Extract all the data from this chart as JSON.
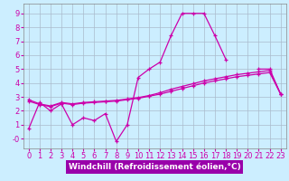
{
  "xlabel": "Windchill (Refroidissement éolien,°C)",
  "background_color": "#cceeff",
  "grid_color": "#aabbcc",
  "line_color": "#cc00aa",
  "x_ticks": [
    0,
    1,
    2,
    3,
    4,
    5,
    6,
    7,
    8,
    9,
    10,
    11,
    12,
    13,
    14,
    15,
    16,
    17,
    18,
    19,
    20,
    21,
    22,
    23
  ],
  "y_ticks": [
    0,
    1,
    2,
    3,
    4,
    5,
    6,
    7,
    8,
    9
  ],
  "y_tick_labels": [
    "-0",
    "1",
    "2",
    "3",
    "4",
    "5",
    "6",
    "7",
    "8",
    "9"
  ],
  "ylim": [
    -0.7,
    9.7
  ],
  "xlim": [
    -0.5,
    23.5
  ],
  "series1_x": [
    0,
    1,
    2,
    3,
    4,
    5,
    6,
    7,
    8,
    9,
    10,
    11,
    12,
    13,
    14,
    15,
    16,
    17,
    18
  ],
  "series1_y": [
    0.7,
    2.6,
    2.0,
    2.5,
    1.0,
    1.5,
    1.3,
    1.8,
    -0.2,
    1.0,
    4.4,
    5.0,
    5.5,
    7.4,
    9.0,
    9.0,
    9.0,
    7.4,
    5.7
  ],
  "series2_x": [
    21,
    22,
    23
  ],
  "series2_y": [
    5.0,
    5.0,
    3.2
  ],
  "series3_x": [
    0,
    1,
    2,
    3,
    4,
    5,
    6,
    7,
    8,
    9,
    10,
    11,
    12,
    13,
    14,
    15,
    16,
    17,
    18,
    19,
    20,
    21,
    22,
    23
  ],
  "series3_y": [
    2.7,
    2.45,
    2.3,
    2.55,
    2.45,
    2.55,
    2.6,
    2.65,
    2.7,
    2.8,
    2.9,
    3.05,
    3.2,
    3.4,
    3.6,
    3.8,
    4.0,
    4.15,
    4.3,
    4.45,
    4.55,
    4.65,
    4.75,
    3.2
  ],
  "series4_x": [
    0,
    1,
    2,
    3,
    4,
    5,
    6,
    7,
    8,
    9,
    10,
    11,
    12,
    13,
    14,
    15,
    16,
    17,
    18,
    19,
    20,
    21,
    22,
    23
  ],
  "series4_y": [
    2.8,
    2.5,
    2.35,
    2.6,
    2.5,
    2.6,
    2.65,
    2.7,
    2.75,
    2.85,
    2.95,
    3.1,
    3.3,
    3.55,
    3.75,
    3.95,
    4.15,
    4.3,
    4.45,
    4.6,
    4.7,
    4.8,
    4.9,
    3.2
  ],
  "xlabel_bg": "#9900aa",
  "xlabel_color": "#ffffff",
  "xlabel_fontsize": 6.5,
  "tick_fontsize": 6.0
}
